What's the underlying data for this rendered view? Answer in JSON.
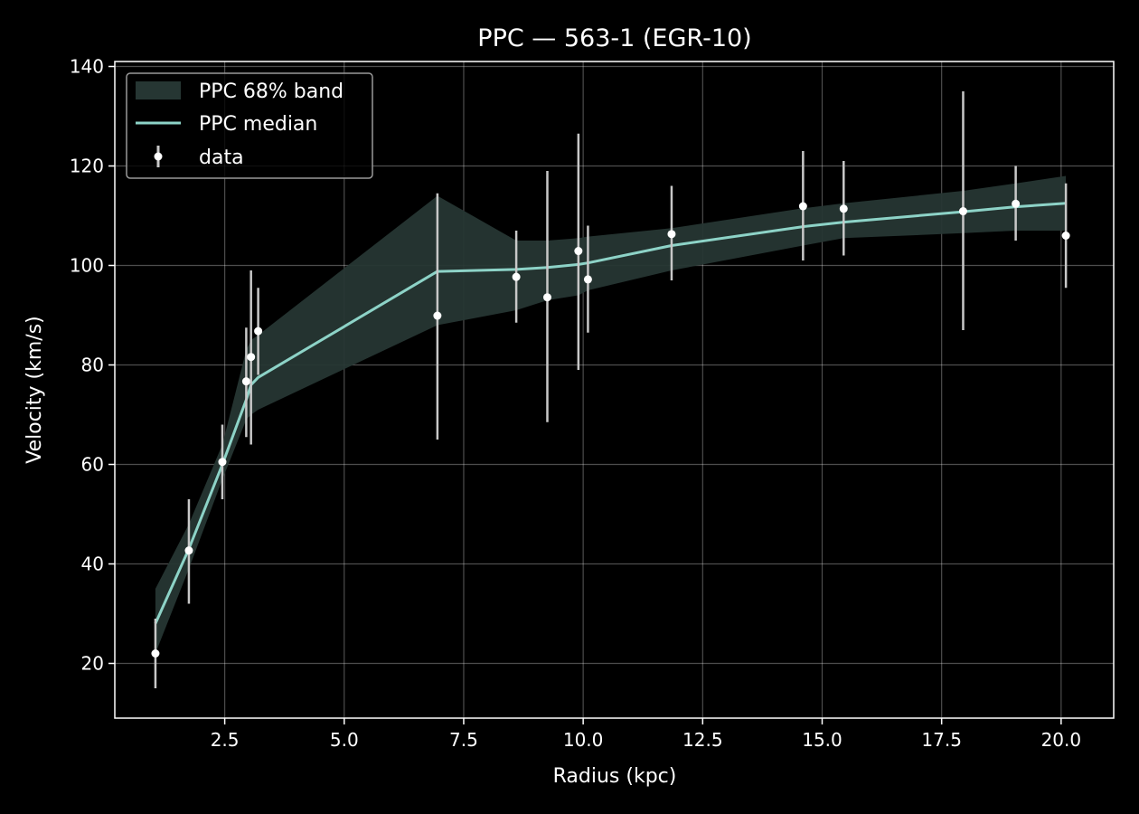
{
  "colors": {
    "background": "#000000",
    "axes": "#ffffff",
    "grid": "#ffffff",
    "band": "#263633",
    "median": "#8dd3c7",
    "errorbar": "#c8c8c8",
    "marker": "#ffffff"
  },
  "chart_data": {
    "type": "line",
    "title": "PPC — 563-1 (EGR-10)",
    "xlabel": "Radius (kpc)",
    "ylabel": "Velocity (km/s)",
    "xlim": [
      0.2,
      21.1
    ],
    "ylim": [
      9,
      141
    ],
    "grid": true,
    "legend_position": "top-left",
    "x_ticks": [
      2.5,
      5.0,
      7.5,
      10.0,
      12.5,
      15.0,
      17.5,
      20.0
    ],
    "x_tick_labels": [
      "2.5",
      "5.0",
      "7.5",
      "10.0",
      "12.5",
      "15.0",
      "17.5",
      "20.0"
    ],
    "y_ticks": [
      20,
      40,
      60,
      80,
      100,
      120,
      140
    ],
    "y_tick_labels": [
      "20",
      "40",
      "60",
      "80",
      "100",
      "120",
      "140"
    ],
    "legend": [
      "PPC 68% band",
      "PPC median",
      "data"
    ],
    "band": {
      "name": "PPC 68% band",
      "x": [
        1.05,
        1.75,
        2.45,
        2.95,
        3.05,
        3.2,
        6.95,
        8.6,
        9.25,
        9.9,
        10.1,
        11.85,
        14.6,
        15.45,
        17.95,
        19.05,
        20.1
      ],
      "lower": [
        22,
        39,
        57,
        69,
        70,
        71,
        88,
        91,
        93,
        94,
        95,
        99,
        104,
        105.5,
        106.5,
        107,
        107
      ],
      "upper": [
        35,
        48,
        64,
        83,
        85,
        86,
        114,
        105,
        105,
        105.5,
        105.8,
        107.5,
        111.5,
        112.5,
        115,
        116.5,
        118
      ]
    },
    "median": {
      "name": "PPC median",
      "x": [
        1.05,
        1.75,
        2.45,
        2.95,
        3.05,
        3.2,
        6.95,
        8.6,
        9.25,
        9.9,
        10.1,
        11.85,
        14.6,
        15.45,
        17.95,
        19.05,
        20.1
      ],
      "y": [
        28,
        43,
        60,
        73,
        76,
        77.5,
        98.8,
        99.2,
        99.6,
        100.2,
        100.5,
        104,
        107.8,
        108.7,
        110.8,
        111.8,
        112.5
      ]
    },
    "data": {
      "name": "data",
      "x": [
        1.05,
        1.75,
        2.45,
        2.95,
        3.05,
        3.2,
        6.95,
        8.6,
        9.25,
        9.9,
        10.1,
        11.85,
        14.6,
        15.45,
        17.95,
        19.05,
        20.1
      ],
      "y": [
        22,
        42.7,
        60.5,
        76.7,
        81.6,
        86.8,
        89.9,
        97.7,
        93.6,
        102.9,
        97.2,
        106.3,
        111.9,
        111.4,
        110.9,
        112.4,
        106
      ],
      "err_low": [
        15,
        32,
        53,
        65.5,
        64,
        78,
        65,
        88.5,
        68.5,
        79,
        86.5,
        97,
        101,
        102,
        87,
        105,
        95.5
      ],
      "err_high": [
        29,
        53,
        68,
        87.5,
        99,
        95.5,
        114.5,
        107,
        119,
        126.5,
        108,
        116,
        123,
        121,
        135,
        120,
        116.5
      ]
    }
  }
}
